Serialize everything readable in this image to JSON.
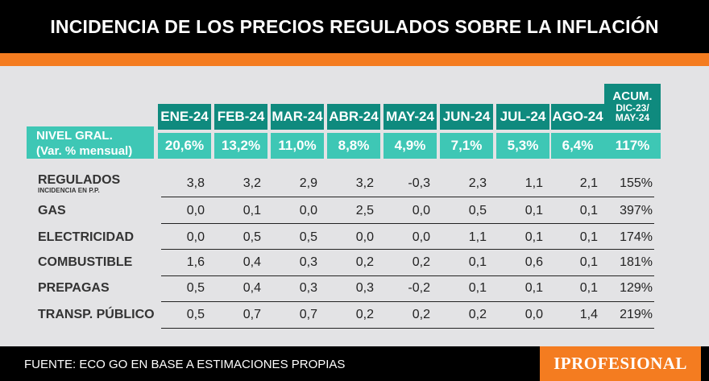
{
  "title": "INCIDENCIA DE LOS PRECIOS REGULADOS SOBRE LA INFLACIÓN",
  "source": "FUENTE: ECO GO EN BASE A ESTIMACIONES PROPIAS",
  "logo": "IPROFESIONAL",
  "colors": {
    "header": "#0f8a7e",
    "nivel": "#3ec7b5",
    "accent": "#f47c20",
    "background": "#e3e3e5"
  },
  "chart_data": {
    "type": "table",
    "columns": [
      "ENE-24",
      "FEB-24",
      "MAR-24",
      "ABR-24",
      "MAY-24",
      "JUN-24",
      "JUL-24",
      "AGO-24"
    ],
    "acum_header": {
      "line1": "ACUM.",
      "line2": "DIC-23/",
      "line3": "MAY-24"
    },
    "nivel": {
      "label_line1": "NIVEL GRAL.",
      "label_line2": "(Var. % mensual)",
      "values": [
        "20,6%",
        "13,2%",
        "11,0%",
        "8,8%",
        "4,9%",
        "7,1%",
        "5,3%",
        "6,4%"
      ],
      "acum": "117%"
    },
    "rows": [
      {
        "label": "REGULADOS",
        "sublabel": "INCIDENCIA EN P.P.",
        "values": [
          "3,8",
          "3,2",
          "2,9",
          "3,2",
          "-0,3",
          "2,3",
          "1,1",
          "2,1"
        ],
        "acum": "155%"
      },
      {
        "label": "GAS",
        "values": [
          "0,0",
          "0,1",
          "0,0",
          "2,5",
          "0,0",
          "0,5",
          "0,1",
          "0,1"
        ],
        "acum": "397%"
      },
      {
        "label": "ELECTRICIDAD",
        "values": [
          "0,0",
          "0,5",
          "0,5",
          "0,0",
          "0,0",
          "1,1",
          "0,1",
          "0,1"
        ],
        "acum": "174%"
      },
      {
        "label": "COMBUSTIBLE",
        "values": [
          "1,6",
          "0,4",
          "0,3",
          "0,2",
          "0,2",
          "0,1",
          "0,6",
          "0,1"
        ],
        "acum": "181%"
      },
      {
        "label": "PREPAGAS",
        "values": [
          "0,5",
          "0,4",
          "0,3",
          "0,3",
          "-0,2",
          "0,1",
          "0,1",
          "0,1"
        ],
        "acum": "129%"
      },
      {
        "label": "TRANSP. PÚBLICO",
        "values": [
          "0,5",
          "0,7",
          "0,7",
          "0,2",
          "0,2",
          "0,2",
          "0,0",
          "1,4"
        ],
        "acum": "219%"
      }
    ]
  }
}
